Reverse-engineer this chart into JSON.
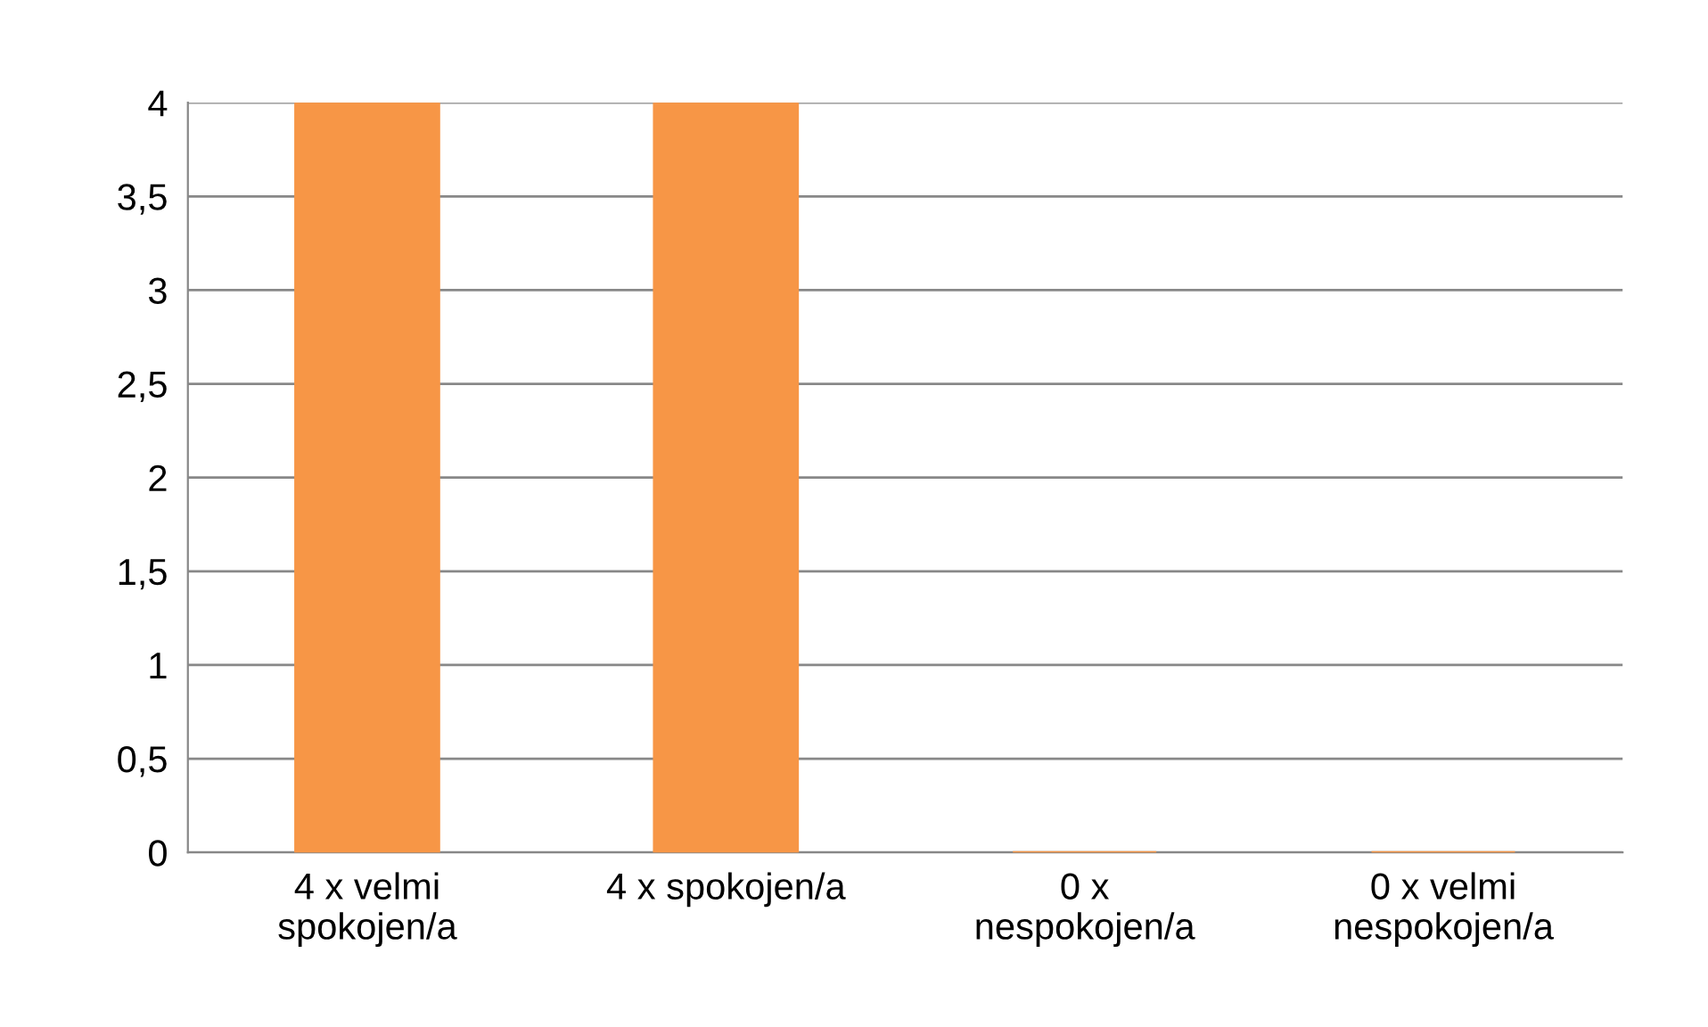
{
  "chart_data": {
    "type": "bar",
    "categories": [
      "4 x velmi\nspokojen/a",
      "4 x spokojen/a",
      "0 x\nnespokojen/a",
      "0 x velmi\nnespokojen/a"
    ],
    "values": [
      4,
      4,
      0,
      0
    ],
    "color": "#f79646",
    "ylim": [
      0,
      4
    ],
    "yticks": [
      0,
      {
        "value": 0.5,
        "label": "0,5"
      },
      1,
      {
        "value": 1.5,
        "label": "1,5"
      },
      2,
      {
        "value": 2.5,
        "label": "2,5"
      },
      3,
      {
        "value": 3.5,
        "label": "3,5"
      },
      4
    ],
    "grid": "y"
  }
}
